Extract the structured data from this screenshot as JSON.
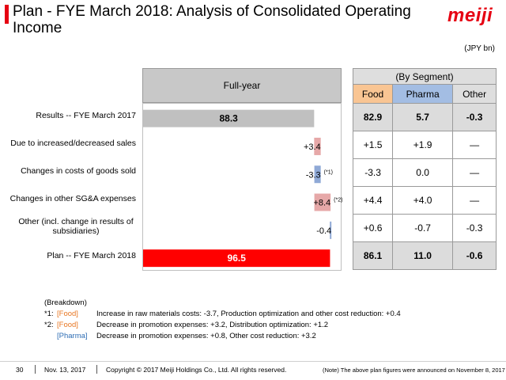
{
  "title": "Plan - FYE March 2018: Analysis of Consolidated Operating Income",
  "logo": "meiji",
  "unit": "(JPY bn)",
  "colors": {
    "accent": "#e60012",
    "gray_bar": "#c0c0c0",
    "increase": "#e6a8a8",
    "decrease": "#8fa9d6",
    "plan": "#ff0000"
  },
  "chart_data": {
    "type": "bar",
    "title": "Full-year",
    "categories": [
      "Results -- FYE March 2017",
      "Due to increased/decreased sales",
      "Changes in costs of goods sold",
      "Changes in other SG&A expenses",
      "Other (incl. change in results of subsidiaries)",
      "Plan -- FYE March 2018"
    ],
    "values": [
      88.3,
      3.4,
      -3.3,
      8.4,
      -0.4,
      96.5
    ],
    "data_labels": [
      "88.3",
      "+3.4",
      "-3.3",
      "+8.4",
      "-0.4",
      "96.5"
    ],
    "notes": [
      "",
      "",
      "(*1)",
      "(*2)",
      "",
      ""
    ],
    "bar_types": [
      "total",
      "increase",
      "decrease",
      "increase",
      "decrease",
      "total"
    ],
    "xlim": [
      0,
      100
    ]
  },
  "segment": {
    "title": "(By Segment)",
    "columns": [
      "Food",
      "Pharma",
      "Other"
    ],
    "rows": [
      [
        "82.9",
        "5.7",
        "-0.3"
      ],
      [
        "+1.5",
        "+1.9",
        "—"
      ],
      [
        "-3.3",
        "0.0",
        "—"
      ],
      [
        "+4.4",
        "+4.0",
        "—"
      ],
      [
        "+0.6",
        "-0.7",
        "-0.3"
      ],
      [
        "86.1",
        "11.0",
        "-0.6"
      ]
    ]
  },
  "breakdown": {
    "heading": "(Breakdown)",
    "items": [
      {
        "mark": "*1:",
        "tag": "[Food]",
        "text": "Increase in raw materials costs: -3.7, Production optimization and other cost reduction: +0.4"
      },
      {
        "mark": "*2:",
        "tag": "[Food]",
        "text": "Decrease in promotion expenses: +3.2, Distribution optimization: +1.2"
      },
      {
        "mark": "",
        "tag": "[Pharma]",
        "text": "Decrease in promotion expenses: +0.8,   Other cost reduction: +3.2"
      }
    ]
  },
  "footer": {
    "page": "30",
    "date": "Nov. 13, 2017",
    "copyright": "Copyright © 2017 Meiji Holdings Co., Ltd. All rights reserved.",
    "note": "(Note) The above plan figures were announced on November 8, 2017"
  }
}
